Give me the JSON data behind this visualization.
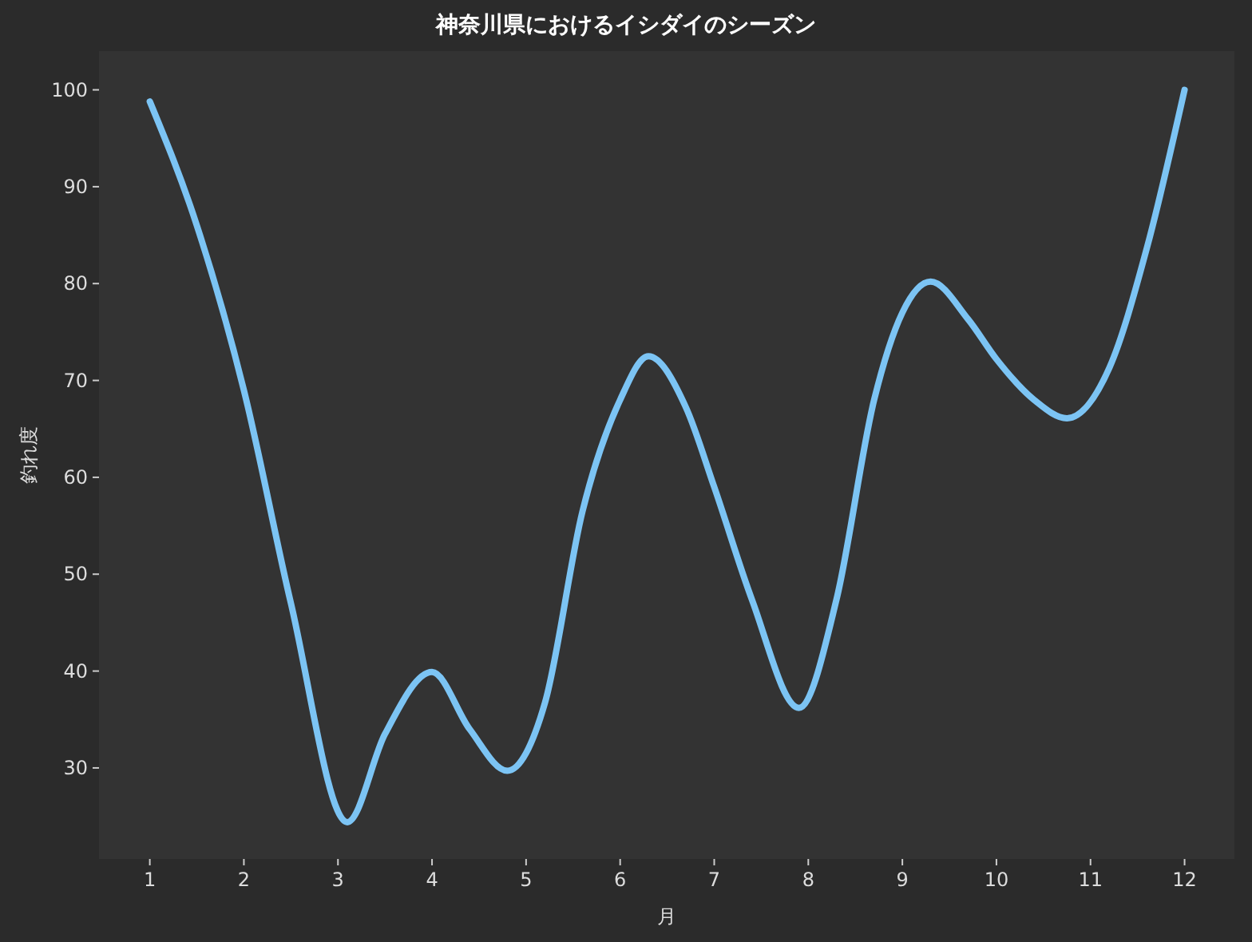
{
  "chart_data": {
    "type": "line",
    "title": "神奈川県におけるイシダイのシーズン",
    "xlabel": "月",
    "ylabel": "釣れ度",
    "x": [
      1,
      1.5,
      2,
      2.5,
      3.1,
      3.5,
      4,
      4.4,
      4.8,
      5.2,
      5.6,
      6,
      6.3,
      6.7,
      7,
      7.4,
      7.9,
      8.3,
      8.7,
      9,
      9.3,
      9.7,
      10,
      10.4,
      10.75,
      11.2,
      11.6,
      12
    ],
    "series": [
      {
        "color": "#7cc4f4",
        "values": [
          98.8,
          86,
          69,
          47,
          24.4,
          33.5,
          39.9,
          34,
          29.7,
          36.7,
          56.5,
          68,
          72.5,
          67.2,
          59,
          47.4,
          36.2,
          47.4,
          68,
          77,
          80.2,
          76.3,
          72.2,
          68,
          66.1,
          71.3,
          83.7,
          100
        ]
      }
    ],
    "xlim": [
      0.46,
      12.53
    ],
    "ylim": [
      20.6,
      104
    ],
    "xticks": [
      1,
      2,
      3,
      4,
      5,
      6,
      7,
      8,
      9,
      10,
      11,
      12
    ],
    "yticks": [
      30,
      40,
      50,
      60,
      70,
      80,
      90,
      100
    ],
    "marker": "none",
    "line_style": "solid"
  }
}
